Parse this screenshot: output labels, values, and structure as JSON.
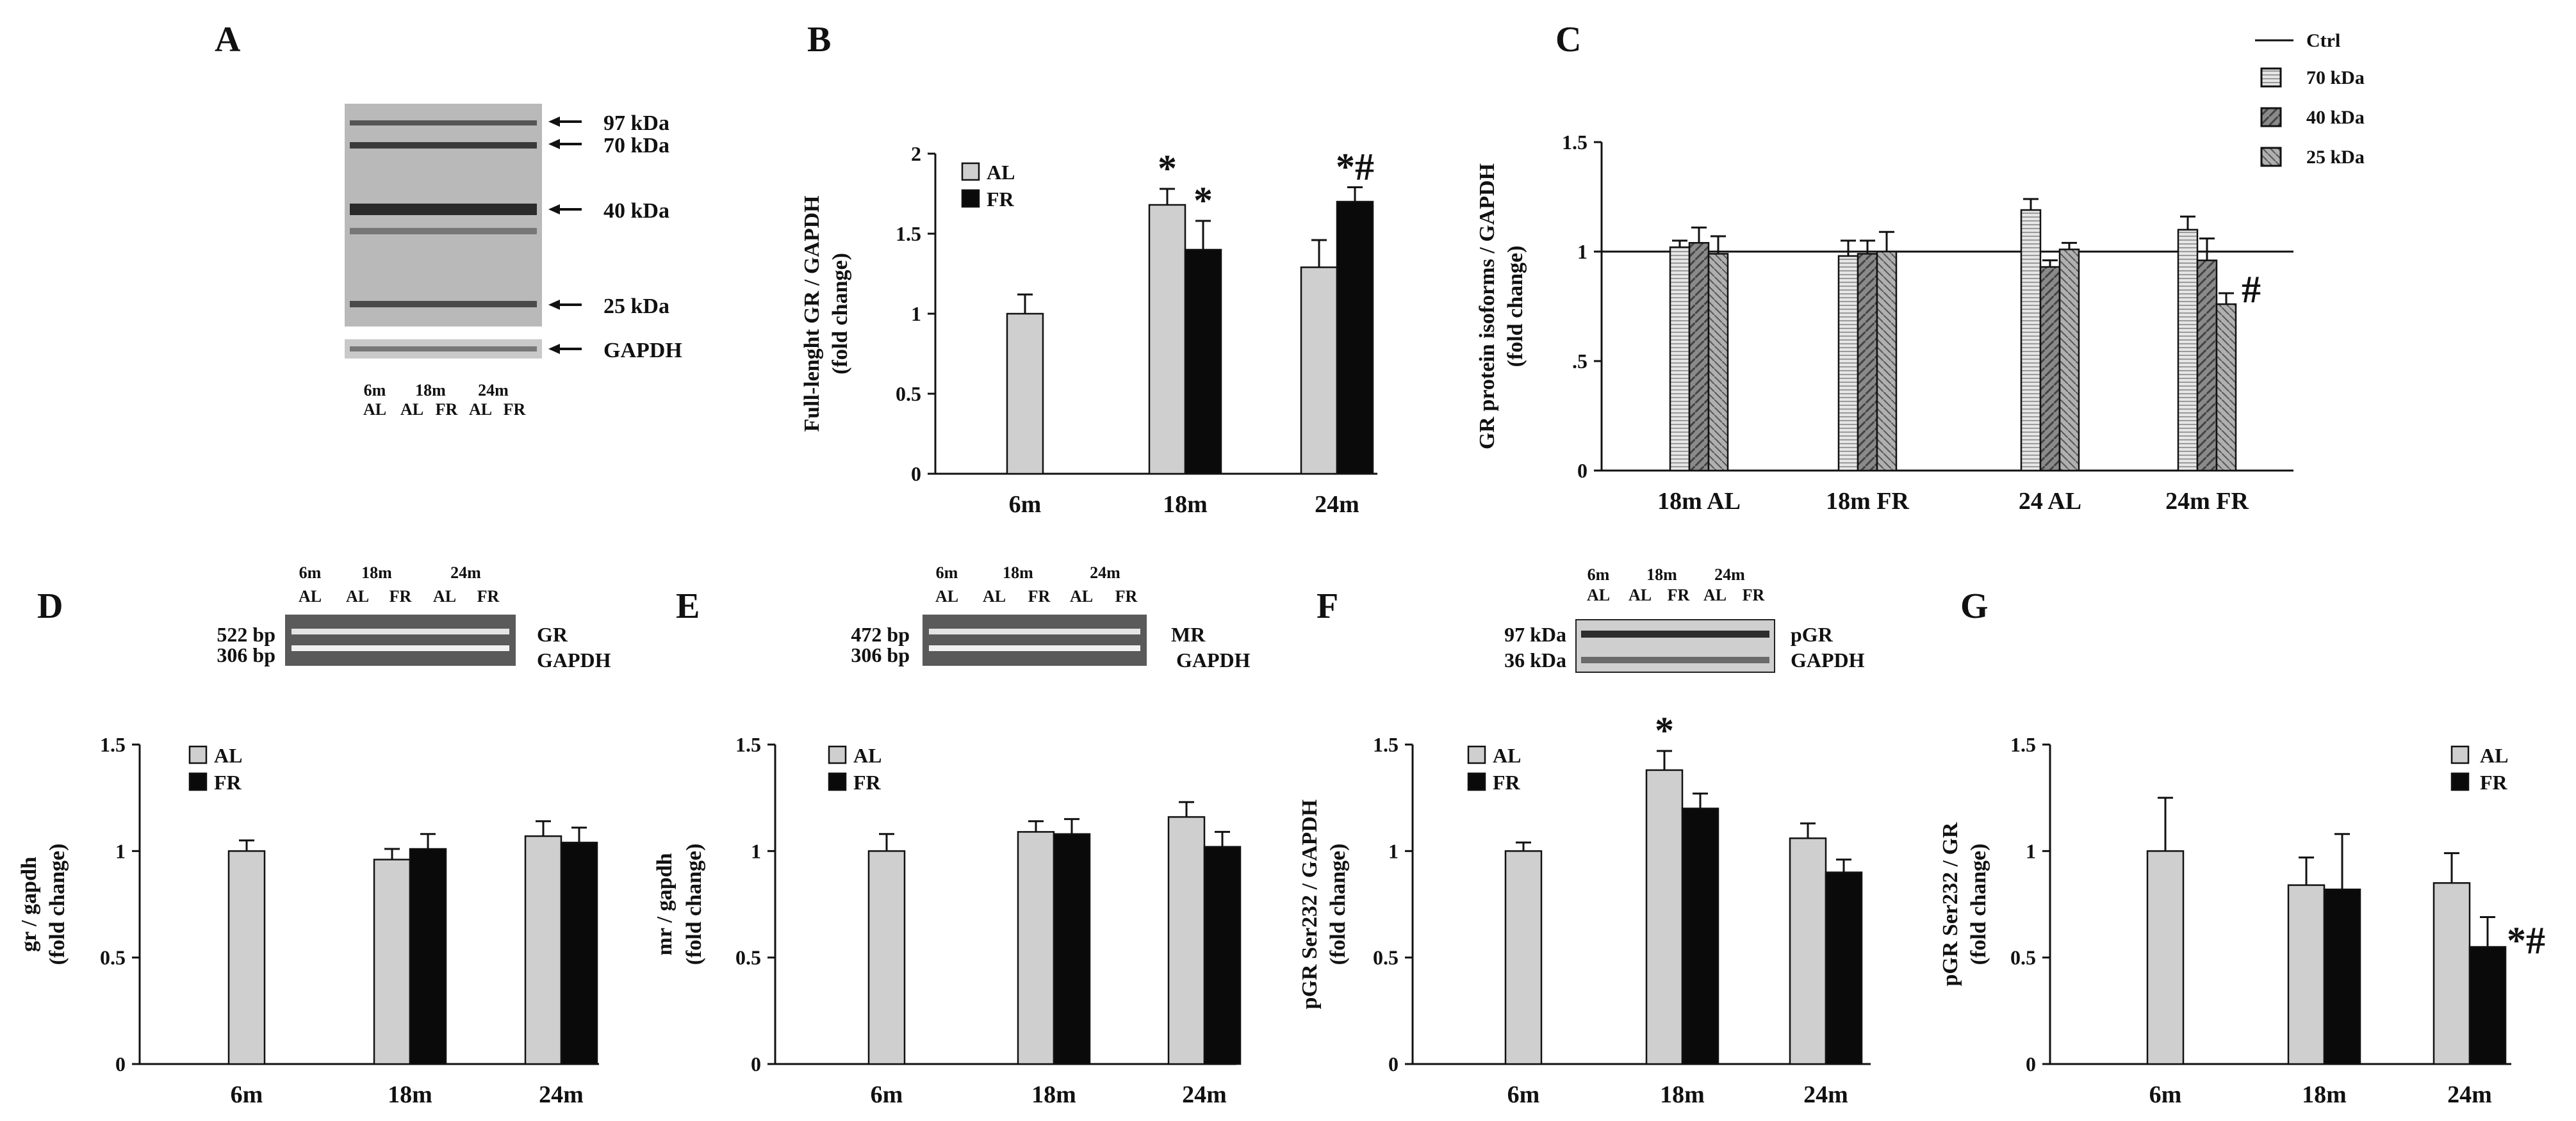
{
  "colors": {
    "al": "#cfcfcf",
    "fr": "#0a0a0a",
    "ctrl": "#111111",
    "ink": "#111111",
    "gel_bg": "#5a5a5a",
    "blot_bg": "#b9b9b9"
  },
  "panel_a": {
    "letter": "A",
    "markers": [
      "97 kDa",
      "70 kDa",
      "40 kDa",
      "25 kDa",
      "GAPDH"
    ],
    "lane_top": [
      "6m",
      "18m",
      "24m"
    ],
    "lane_bottom": [
      "AL",
      "AL",
      "FR",
      "AL",
      "FR"
    ]
  },
  "panel_d": {
    "letter": "D",
    "lane_top": [
      "6m",
      "18m",
      "24m"
    ],
    "lane_bottom": [
      "AL",
      "AL",
      "FR",
      "AL",
      "FR"
    ],
    "left_labels": [
      "522 bp",
      "306 bp"
    ],
    "right_labels": [
      "GR",
      "GAPDH"
    ]
  },
  "panel_e": {
    "letter": "E",
    "lane_top": [
      "6m",
      "18m",
      "24m"
    ],
    "lane_bottom": [
      "AL",
      "AL",
      "FR",
      "AL",
      "FR"
    ],
    "left_labels": [
      "472 bp",
      "306 bp"
    ],
    "right_labels": [
      "MR",
      "GAPDH"
    ]
  },
  "panel_f": {
    "letter": "F",
    "lane_top": [
      "6m",
      "18m",
      "24m"
    ],
    "lane_bottom": [
      "AL",
      "AL",
      "FR",
      "AL",
      "FR"
    ],
    "left_labels": [
      "97 kDa",
      "36 kDa"
    ],
    "right_labels": [
      "pGR",
      "GAPDH"
    ]
  },
  "chart_data": [
    {
      "panel": "B",
      "type": "bar",
      "ylabel": [
        "Full-lenght GR / GAPDH",
        "(fold change)"
      ],
      "categories": [
        "6m",
        "18m",
        "24m"
      ],
      "ylim": [
        0,
        2
      ],
      "yticks": [
        0,
        0.5,
        1,
        1.5,
        2
      ],
      "ytick_labels": [
        "0",
        "0.5",
        "1",
        "1.5",
        "2"
      ],
      "series": [
        {
          "name": "AL",
          "values": [
            1.0,
            1.68,
            1.29
          ],
          "errors": [
            0.12,
            0.1,
            0.17
          ],
          "color": "#cfcfcf"
        },
        {
          "name": "FR",
          "values": [
            null,
            1.4,
            1.7
          ],
          "errors": [
            null,
            0.18,
            0.09
          ],
          "color": "#0a0a0a"
        }
      ],
      "annotations": [
        {
          "series": 0,
          "index": 1,
          "text": "*"
        },
        {
          "series": 1,
          "index": 1,
          "text": "*"
        },
        {
          "series": 1,
          "index": 2,
          "text": "*#"
        }
      ],
      "legend": "top-left"
    },
    {
      "panel": "C",
      "type": "bar",
      "ylabel": [
        "GR protein isoforms / GAPDH",
        "(fold change)"
      ],
      "categories": [
        "18m AL",
        "18m FR",
        "24 AL",
        "24m FR"
      ],
      "ylim": [
        0,
        1.5
      ],
      "yticks": [
        0,
        0.5,
        1,
        1.5
      ],
      "ytick_labels": [
        "0",
        ".5",
        "1",
        "1.5"
      ],
      "reference_line": {
        "name": "Ctrl",
        "value": 1
      },
      "series": [
        {
          "name": "70 kDa",
          "values": [
            1.02,
            0.98,
            1.19,
            1.1
          ],
          "errors": [
            0.03,
            0.07,
            0.05,
            0.06
          ],
          "color": "#e6e6e6"
        },
        {
          "name": "40 kDa",
          "values": [
            1.04,
            0.99,
            0.93,
            0.96
          ],
          "errors": [
            0.07,
            0.06,
            0.03,
            0.1
          ],
          "color": "#8a8a8a"
        },
        {
          "name": "25 kDa",
          "values": [
            0.99,
            1.0,
            1.01,
            0.76
          ],
          "errors": [
            0.08,
            0.09,
            0.03,
            0.05
          ],
          "color": "#b0b0b0"
        }
      ],
      "annotations": [
        {
          "series": 2,
          "index": 3,
          "text": "#"
        }
      ],
      "legend": "top-right"
    },
    {
      "panel": "D",
      "type": "bar",
      "ylabel": [
        "gr / gapdh",
        "(fold change)"
      ],
      "categories": [
        "6m",
        "18m",
        "24m"
      ],
      "ylim": [
        0,
        1.5
      ],
      "yticks": [
        0,
        0.5,
        1,
        1.5
      ],
      "ytick_labels": [
        "0",
        "0.5",
        "1",
        "1.5"
      ],
      "series": [
        {
          "name": "AL",
          "values": [
            1.0,
            0.96,
            1.07
          ],
          "errors": [
            0.05,
            0.05,
            0.07
          ],
          "color": "#cfcfcf"
        },
        {
          "name": "FR",
          "values": [
            null,
            1.01,
            1.04
          ],
          "errors": [
            null,
            0.07,
            0.07
          ],
          "color": "#0a0a0a"
        }
      ],
      "annotations": [],
      "legend": "top-left"
    },
    {
      "panel": "E",
      "type": "bar",
      "ylabel": [
        "mr / gapdh",
        "(fold change)"
      ],
      "categories": [
        "6m",
        "18m",
        "24m"
      ],
      "ylim": [
        0,
        1.5
      ],
      "yticks": [
        0,
        0.5,
        1,
        1.5
      ],
      "ytick_labels": [
        "0",
        "0.5",
        "1",
        "1.5"
      ],
      "series": [
        {
          "name": "AL",
          "values": [
            1.0,
            1.09,
            1.16
          ],
          "errors": [
            0.08,
            0.05,
            0.07
          ],
          "color": "#cfcfcf"
        },
        {
          "name": "FR",
          "values": [
            null,
            1.08,
            1.02
          ],
          "errors": [
            null,
            0.07,
            0.07
          ],
          "color": "#0a0a0a"
        }
      ],
      "annotations": [],
      "legend": "top-left"
    },
    {
      "panel": "F",
      "type": "bar",
      "ylabel": [
        "pGR Ser232 / GAPDH",
        "(fold change)"
      ],
      "categories": [
        "6m",
        "18m",
        "24m"
      ],
      "ylim": [
        0,
        1.5
      ],
      "yticks": [
        0,
        0.5,
        1,
        1.5
      ],
      "ytick_labels": [
        "0",
        "0.5",
        "1",
        "1.5"
      ],
      "series": [
        {
          "name": "AL",
          "values": [
            1.0,
            1.38,
            1.06
          ],
          "errors": [
            0.04,
            0.09,
            0.07
          ],
          "color": "#cfcfcf"
        },
        {
          "name": "FR",
          "values": [
            null,
            1.2,
            0.9
          ],
          "errors": [
            null,
            0.07,
            0.06
          ],
          "color": "#0a0a0a"
        }
      ],
      "annotations": [
        {
          "series": 0,
          "index": 1,
          "text": "*"
        }
      ],
      "legend": "top-left"
    },
    {
      "panel": "G",
      "type": "bar",
      "ylabel": [
        "pGR Ser232 / GR",
        "(fold change)"
      ],
      "categories": [
        "6m",
        "18m",
        "24m"
      ],
      "ylim": [
        0,
        1.5
      ],
      "yticks": [
        0,
        0.5,
        1,
        1.5
      ],
      "ytick_labels": [
        "0",
        "0.5",
        "1",
        "1.5"
      ],
      "series": [
        {
          "name": "AL",
          "values": [
            1.0,
            0.84,
            0.85
          ],
          "errors": [
            0.25,
            0.13,
            0.14
          ],
          "color": "#cfcfcf"
        },
        {
          "name": "FR",
          "values": [
            null,
            0.82,
            0.55
          ],
          "errors": [
            null,
            0.26,
            0.14
          ],
          "color": "#0a0a0a"
        }
      ],
      "annotations": [
        {
          "series": 1,
          "index": 2,
          "text": "*#"
        }
      ],
      "legend": "top-right"
    }
  ]
}
